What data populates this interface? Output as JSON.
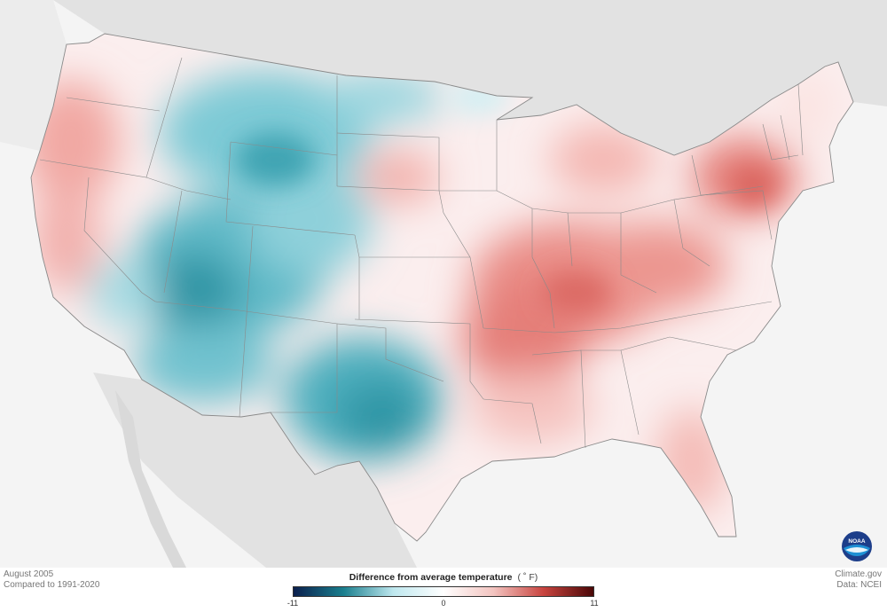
{
  "meta": {
    "period": "August 2005",
    "baseline": "Compared to 1991-2020",
    "source": "Climate.gov",
    "data_credit": "Data: NCEI"
  },
  "legend": {
    "title": "Difference from average temperature",
    "unit": "( ˚ F)",
    "min_label": "-11",
    "mid_label": "0",
    "max_label": "11",
    "colors": [
      "#0b1f4d",
      "#1a7f8e",
      "#bfe8ef",
      "#ffffff",
      "#f3c4c0",
      "#c8443f",
      "#4a0707"
    ]
  },
  "logo": {
    "text": "NOAA",
    "icon": "noaa-logo-icon"
  },
  "colors": {
    "land_other": "#e3e3e3",
    "ocean": "#f4f4f4",
    "state_border": "#8a8a8a",
    "cool": "#5fb9c7",
    "cool_strong": "#2b8f9f",
    "warm": "#ef9a95",
    "warm_strong": "#d9625c"
  }
}
